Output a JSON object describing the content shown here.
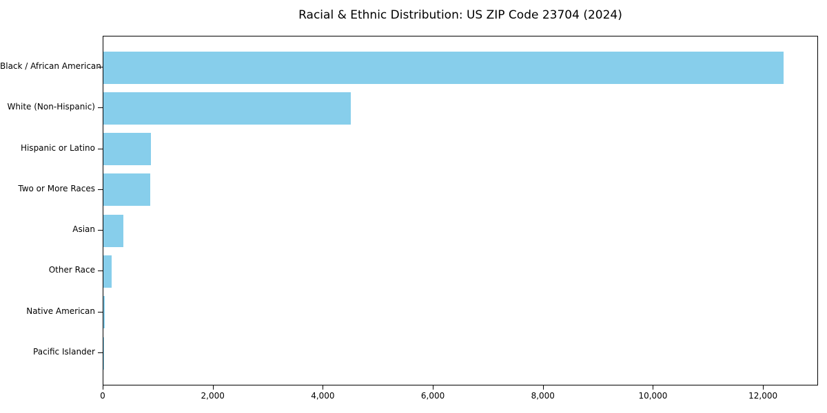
{
  "chart_data": {
    "type": "bar",
    "orientation": "horizontal",
    "title": "Racial & Ethnic Distribution: US ZIP Code 23704 (2024)",
    "categories": [
      "Black / African American",
      "White (Non-Hispanic)",
      "Hispanic or Latino",
      "Two or More Races",
      "Asian",
      "Other Race",
      "Native American",
      "Pacific Islander"
    ],
    "values": [
      12380,
      4500,
      860,
      850,
      360,
      150,
      20,
      5
    ],
    "xlabel": "",
    "ylabel": "",
    "xlim": [
      0,
      13000
    ],
    "x_ticks": [
      0,
      2000,
      4000,
      6000,
      8000,
      10000,
      12000
    ],
    "x_tick_labels": [
      "0",
      "2,000",
      "4,000",
      "6,000",
      "8,000",
      "10,000",
      "12,000"
    ],
    "bar_color": "#87CEEB",
    "frame_color": "#000000",
    "background_color": "#ffffff",
    "grid": false,
    "legend": "none"
  }
}
